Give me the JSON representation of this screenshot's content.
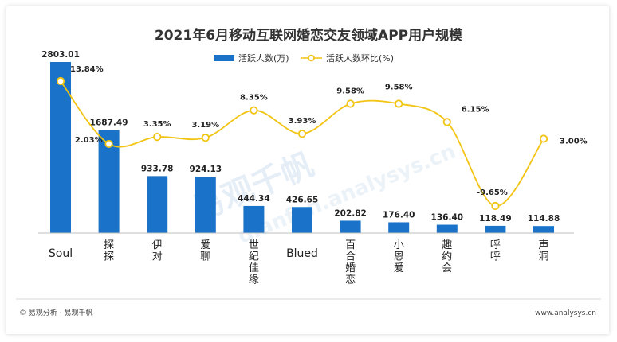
{
  "chart_data": {
    "type": "bar",
    "title": "2021年6月移动互联网婚恋交友领域APP用户规模",
    "categories": [
      "Soul",
      "探探",
      "伊对",
      "爱聊",
      "世纪佳缘",
      "Blued",
      "百合婚恋",
      "小恩爱",
      "趣约会",
      "呼呼",
      "声洞"
    ],
    "series": [
      {
        "name": "活跃人数(万)",
        "type": "bar",
        "values": [
          2803.01,
          1687.49,
          933.78,
          924.13,
          444.34,
          426.65,
          202.82,
          176.4,
          136.4,
          118.49,
          114.88
        ],
        "labels": [
          "2803.01",
          "1687.49",
          "933.78",
          "924.13",
          "444.34",
          "426.65",
          "202.82",
          "176.40",
          "136.40",
          "118.49",
          "114.88"
        ]
      },
      {
        "name": "活跃人数环比(%)",
        "type": "line",
        "values": [
          13.84,
          2.03,
          3.35,
          3.19,
          8.35,
          3.93,
          9.58,
          9.58,
          6.15,
          -9.65,
          3.0
        ],
        "labels": [
          "13.84%",
          "2.03%",
          "3.35%",
          "3.19%",
          "8.35%",
          "3.93%",
          "9.58%",
          "9.58%",
          "6.15%",
          "-9.65%",
          "3.00%"
        ]
      }
    ],
    "legend": "top-center",
    "grid": false,
    "colors": {
      "bar": "#1a73c8",
      "line": "#f2c413",
      "line_marker_fill": "#ffffff"
    }
  },
  "watermark": {
    "brand": "易观千帆",
    "site": "qianfan.analysys.cn"
  },
  "footer": {
    "left": "© 易观分析 · 易观千帆",
    "right": "www.analysys.cn"
  }
}
